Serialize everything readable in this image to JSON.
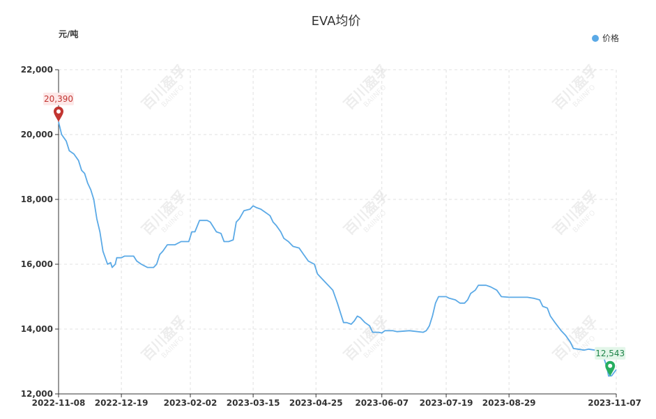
{
  "chart_data": {
    "type": "line",
    "title": "EVA均价",
    "ylabel": "元/吨",
    "ylim": [
      12000,
      22000
    ],
    "yticks": [
      12000,
      14000,
      16000,
      18000,
      20000,
      22000
    ],
    "ytick_labels": [
      "12,000",
      "14,000",
      "16,000",
      "18,000",
      "20,000",
      "22,000"
    ],
    "xlim": [
      "2022-11-08",
      "2023-11-07"
    ],
    "xtick_labels": [
      "2022-11-08",
      "2022-12-19",
      "2023-02-02",
      "2023-03-15",
      "2023-04-25",
      "2023-06-07",
      "2023-07-19",
      "2023-08-29",
      "2023-11-07"
    ],
    "xtick_dates": [
      "2022-11-08",
      "2022-12-19",
      "2023-02-02",
      "2023-03-15",
      "2023-04-25",
      "2023-06-07",
      "2023-07-19",
      "2023-08-29",
      "2023-11-07"
    ],
    "legend": {
      "position": "top-right"
    },
    "grid": true,
    "series": [
      {
        "name": "价格",
        "color": "#5aa9e6",
        "points": [
          [
            "2022-11-08",
            20390
          ],
          [
            "2022-11-10",
            20000
          ],
          [
            "2022-11-13",
            19800
          ],
          [
            "2022-11-15",
            19500
          ],
          [
            "2022-11-18",
            19400
          ],
          [
            "2022-11-21",
            19200
          ],
          [
            "2022-11-23",
            18900
          ],
          [
            "2022-11-25",
            18800
          ],
          [
            "2022-11-27",
            18500
          ],
          [
            "2022-11-29",
            18300
          ],
          [
            "2022-12-01",
            18000
          ],
          [
            "2022-12-03",
            17400
          ],
          [
            "2022-12-05",
            17000
          ],
          [
            "2022-12-07",
            16400
          ],
          [
            "2022-12-10",
            16000
          ],
          [
            "2022-12-12",
            16050
          ],
          [
            "2022-12-13",
            15900
          ],
          [
            "2022-12-15",
            16000
          ],
          [
            "2022-12-16",
            16200
          ],
          [
            "2022-12-19",
            16200
          ],
          [
            "2022-12-21",
            16250
          ],
          [
            "2022-12-27",
            16250
          ],
          [
            "2022-12-29",
            16100
          ],
          [
            "2023-01-01",
            16000
          ],
          [
            "2023-01-05",
            15900
          ],
          [
            "2023-01-09",
            15900
          ],
          [
            "2023-01-11",
            16000
          ],
          [
            "2023-01-13",
            16300
          ],
          [
            "2023-01-15",
            16400
          ],
          [
            "2023-01-18",
            16600
          ],
          [
            "2023-01-23",
            16600
          ],
          [
            "2023-01-27",
            16700
          ],
          [
            "2023-02-01",
            16700
          ],
          [
            "2023-02-03",
            17000
          ],
          [
            "2023-02-05",
            17000
          ],
          [
            "2023-02-08",
            17350
          ],
          [
            "2023-02-13",
            17350
          ],
          [
            "2023-02-15",
            17300
          ],
          [
            "2023-02-19",
            17000
          ],
          [
            "2023-02-22",
            16950
          ],
          [
            "2023-02-24",
            16700
          ],
          [
            "2023-02-27",
            16700
          ],
          [
            "2023-03-02",
            16750
          ],
          [
            "2023-03-04",
            17300
          ],
          [
            "2023-03-06",
            17400
          ],
          [
            "2023-03-09",
            17650
          ],
          [
            "2023-03-13",
            17700
          ],
          [
            "2023-03-15",
            17800
          ],
          [
            "2023-03-17",
            17750
          ],
          [
            "2023-03-20",
            17700
          ],
          [
            "2023-03-23",
            17600
          ],
          [
            "2023-03-26",
            17500
          ],
          [
            "2023-03-28",
            17300
          ],
          [
            "2023-03-30",
            17200
          ],
          [
            "2023-04-02",
            17000
          ],
          [
            "2023-04-04",
            16800
          ],
          [
            "2023-04-07",
            16700
          ],
          [
            "2023-04-10",
            16550
          ],
          [
            "2023-04-14",
            16500
          ],
          [
            "2023-04-17",
            16300
          ],
          [
            "2023-04-20",
            16100
          ],
          [
            "2023-04-24",
            16000
          ],
          [
            "2023-04-26",
            15700
          ],
          [
            "2023-04-28",
            15600
          ],
          [
            "2023-05-01",
            15450
          ],
          [
            "2023-05-04",
            15300
          ],
          [
            "2023-05-06",
            15200
          ],
          [
            "2023-05-09",
            14800
          ],
          [
            "2023-05-11",
            14500
          ],
          [
            "2023-05-13",
            14200
          ],
          [
            "2023-05-15",
            14200
          ],
          [
            "2023-05-18",
            14150
          ],
          [
            "2023-05-20",
            14250
          ],
          [
            "2023-05-22",
            14400
          ],
          [
            "2023-05-24",
            14350
          ],
          [
            "2023-05-27",
            14200
          ],
          [
            "2023-05-30",
            14100
          ],
          [
            "2023-06-01",
            13900
          ],
          [
            "2023-06-05",
            13900
          ],
          [
            "2023-06-07",
            13880
          ],
          [
            "2023-06-09",
            13950
          ],
          [
            "2023-06-14",
            13950
          ],
          [
            "2023-06-17",
            13920
          ],
          [
            "2023-06-25",
            13950
          ],
          [
            "2023-07-04",
            13900
          ],
          [
            "2023-07-06",
            13950
          ],
          [
            "2023-07-08",
            14100
          ],
          [
            "2023-07-10",
            14400
          ],
          [
            "2023-07-12",
            14800
          ],
          [
            "2023-07-14",
            15000
          ],
          [
            "2023-07-19",
            15000
          ],
          [
            "2023-07-21",
            14950
          ],
          [
            "2023-07-25",
            14900
          ],
          [
            "2023-07-28",
            14800
          ],
          [
            "2023-07-31",
            14800
          ],
          [
            "2023-08-02",
            14900
          ],
          [
            "2023-08-04",
            15100
          ],
          [
            "2023-08-07",
            15200
          ],
          [
            "2023-08-09",
            15350
          ],
          [
            "2023-08-14",
            15350
          ],
          [
            "2023-08-17",
            15300
          ],
          [
            "2023-08-21",
            15200
          ],
          [
            "2023-08-24",
            15000
          ],
          [
            "2023-08-29",
            14980
          ],
          [
            "2023-09-05",
            14980
          ],
          [
            "2023-09-10",
            14980
          ],
          [
            "2023-09-14",
            14950
          ],
          [
            "2023-09-18",
            14900
          ],
          [
            "2023-09-20",
            14700
          ],
          [
            "2023-09-23",
            14650
          ],
          [
            "2023-09-25",
            14400
          ],
          [
            "2023-09-28",
            14200
          ],
          [
            "2023-10-02",
            13950
          ],
          [
            "2023-10-05",
            13800
          ],
          [
            "2023-10-08",
            13600
          ],
          [
            "2023-10-10",
            13400
          ],
          [
            "2023-10-13",
            13380
          ],
          [
            "2023-10-17",
            13350
          ],
          [
            "2023-10-20",
            13380
          ],
          [
            "2023-10-24",
            13350
          ],
          [
            "2023-10-27",
            13330
          ],
          [
            "2023-10-30",
            13100
          ],
          [
            "2023-11-01",
            12800
          ],
          [
            "2023-11-02",
            12550
          ],
          [
            "2023-11-04",
            12560
          ],
          [
            "2023-11-07",
            12750
          ]
        ]
      }
    ],
    "markers": [
      {
        "type": "max",
        "label": "20,390",
        "date": "2022-11-08",
        "value": 20390,
        "color": "#c23531",
        "label_color": "#c23531",
        "label_bg": "#fde8e8"
      },
      {
        "type": "min",
        "label": "12,543",
        "date": "2023-11-03",
        "value": 12543,
        "color": "#27ae60",
        "label_color": "#1e8449",
        "label_bg": "#e3f6e9"
      }
    ],
    "watermark": {
      "main": "百川盈孚",
      "sub": "BAIINFO"
    }
  }
}
